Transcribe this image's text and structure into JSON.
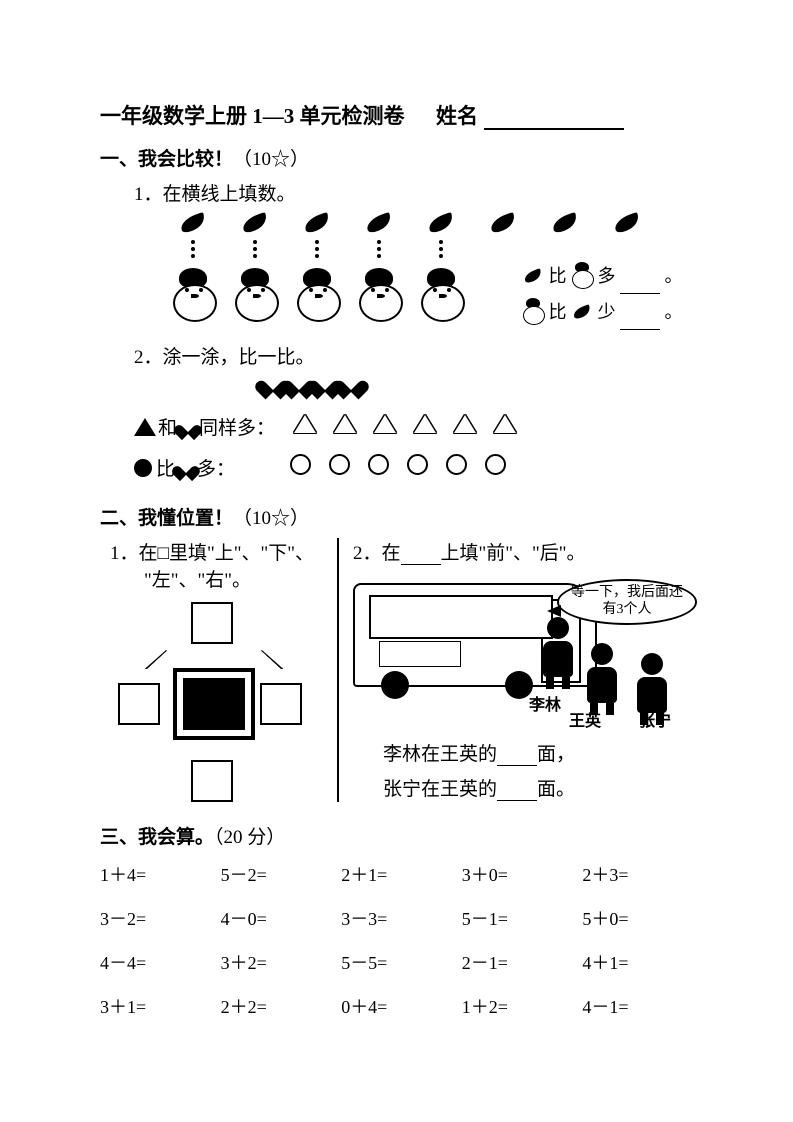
{
  "header": {
    "title": "一年级数学上册 1—3 单元检测卷",
    "name_label": "姓名"
  },
  "section1": {
    "heading": "一、我会比较！",
    "points": "（10☆）",
    "q1": {
      "label": "1．在横线上填数。",
      "carrot_count": 8,
      "snowman_count": 5,
      "compare1_a": "比",
      "compare1_b": "多",
      "compare1_end": "。",
      "compare2_a": "比",
      "compare2_b": "少",
      "compare2_end": "。"
    },
    "q2": {
      "label": "2．涂一涂，比一比。",
      "heart_count": 4,
      "rowA_prefix": "▲和",
      "rowA_text": "同样多：",
      "triangle_count": 6,
      "rowB_prefix": "●比",
      "rowB_text": "多：",
      "circle_count": 6
    }
  },
  "section2": {
    "heading": "二、我懂位置！",
    "points": "（10☆）",
    "left": {
      "label_a": "1．在□里填\"上\"、\"下\"、",
      "label_b": "\"左\"、\"右\"。"
    },
    "right": {
      "label_a": "2．在",
      "label_b": "上填\"前\"、\"后\"。",
      "bubble": "等一下，我后面还有3个人",
      "kid1": "李林",
      "kid2": "王英",
      "kid3": "张宁",
      "sentence1_a": "李林在王英的",
      "sentence1_b": "面，",
      "sentence2_a": "张宁在王英的",
      "sentence2_b": "面。"
    }
  },
  "section3": {
    "heading": "三、我会算。",
    "points": "（20 分）",
    "problems": [
      "1＋4=",
      "5－2=",
      "2＋1=",
      "3＋0=",
      "2＋3=",
      "3－2=",
      "4－0=",
      "3－3=",
      "5－1=",
      "5＋0=",
      "4－4=",
      "3＋2=",
      "5－5=",
      "2－1=",
      "4＋1=",
      "3＋1=",
      "2＋2=",
      "0＋4=",
      "1＋2=",
      "4－1="
    ]
  }
}
